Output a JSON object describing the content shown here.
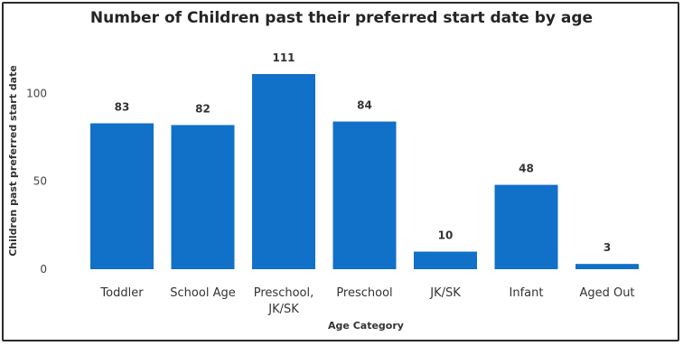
{
  "chart_data": {
    "type": "bar",
    "title": "Number of Children past their preferred start date by age",
    "xlabel": "Age Category",
    "ylabel": "Children past preferred start date",
    "categories": [
      "Toddler",
      "School Age",
      "Preschool, JK/SK",
      "Preschool",
      "JK/SK",
      "Infant",
      "Aged Out"
    ],
    "category_lines": [
      [
        "Toddler"
      ],
      [
        "School Age"
      ],
      [
        "Preschool,",
        "JK/SK"
      ],
      [
        "Preschool"
      ],
      [
        "JK/SK"
      ],
      [
        "Infant"
      ],
      [
        "Aged Out"
      ]
    ],
    "values": [
      83,
      82,
      111,
      84,
      10,
      48,
      3
    ],
    "yticks": [
      0,
      50,
      100
    ],
    "ylim": [
      0,
      111
    ],
    "grid": false,
    "bar_color": "#1170c8"
  }
}
